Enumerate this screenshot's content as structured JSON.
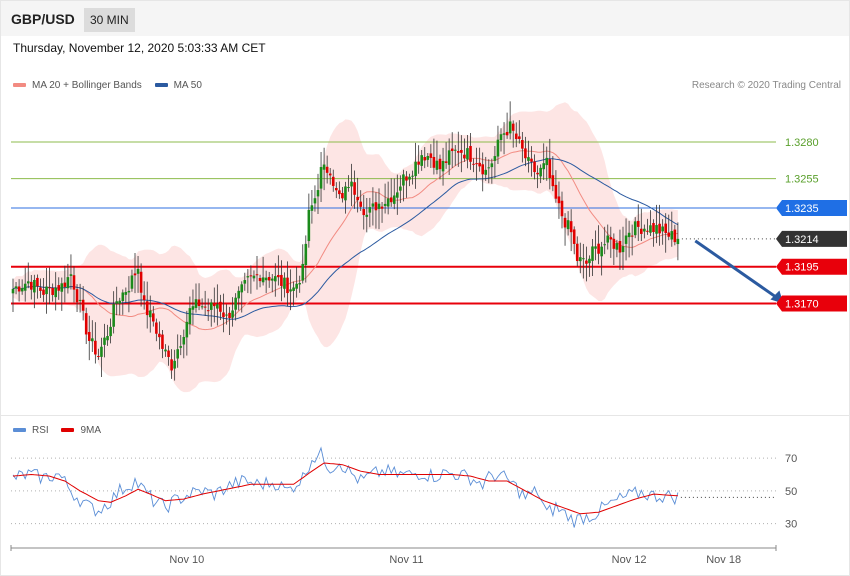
{
  "header": {
    "symbol": "GBP/USD",
    "timeframe": "30 MIN"
  },
  "timestamp": "Thursday, November 12, 2020 5:03:33 AM CET",
  "credit": "Research © 2020 Trading Central",
  "legend_main": [
    {
      "label": "MA 20 + Bollinger Bands",
      "color": "#f28b82"
    },
    {
      "label": "MA 50",
      "color": "#2b5aa0"
    }
  ],
  "legend_rsi": [
    {
      "label": "RSI",
      "color": "#5b8ed6"
    },
    {
      "label": "9MA",
      "color": "#e00000"
    }
  ],
  "chart_data": {
    "type": "candlestick",
    "ylim": [
      1.3094,
      1.3312
    ],
    "x_ticks": [
      {
        "label": "Nov 10",
        "index": 57
      },
      {
        "label": "Nov 11",
        "index": 129
      },
      {
        "label": "Nov 12",
        "index": 202
      },
      {
        "label": "Nov 18",
        "index": 233
      }
    ],
    "levels": [
      {
        "value": 1.328,
        "label": "1.3280",
        "type": "resistance",
        "color": "#8dbb4c"
      },
      {
        "value": 1.3255,
        "label": "1.3255",
        "type": "resistance",
        "color": "#8dbb4c"
      },
      {
        "value": 1.3235,
        "label": "1.3235",
        "type": "pivot",
        "color": "#2e6fe0"
      },
      {
        "value": 1.3214,
        "label": "1.3214",
        "type": "last",
        "color": "#333333"
      },
      {
        "value": 1.3195,
        "label": "1.3195",
        "type": "support",
        "color": "#e8000b"
      },
      {
        "value": 1.317,
        "label": "1.3170",
        "type": "support",
        "color": "#e8000b"
      }
    ],
    "forecast_arrow": {
      "from": [
        226,
        1.3214
      ],
      "to": [
        248,
        1.317
      ]
    },
    "price_path": [
      [
        0,
        1.318
      ],
      [
        5,
        1.3185
      ],
      [
        10,
        1.3178
      ],
      [
        16,
        1.3182
      ],
      [
        19,
        1.319
      ],
      [
        22,
        1.3168
      ],
      [
        25,
        1.3145
      ],
      [
        28,
        1.3135
      ],
      [
        31,
        1.315
      ],
      [
        34,
        1.3172
      ],
      [
        38,
        1.3182
      ],
      [
        41,
        1.3195
      ],
      [
        43,
        1.3168
      ],
      [
        46,
        1.3158
      ],
      [
        49,
        1.314
      ],
      [
        52,
        1.3128
      ],
      [
        55,
        1.3145
      ],
      [
        58,
        1.3165
      ],
      [
        61,
        1.317
      ],
      [
        64,
        1.3166
      ],
      [
        67,
        1.317
      ],
      [
        70,
        1.316
      ],
      [
        74,
        1.3175
      ],
      [
        77,
        1.3185
      ],
      [
        81,
        1.319
      ],
      [
        85,
        1.3188
      ],
      [
        89,
        1.3183
      ],
      [
        92,
        1.318
      ],
      [
        95,
        1.3192
      ],
      [
        97,
        1.323
      ],
      [
        99,
        1.3242
      ],
      [
        101,
        1.326
      ],
      [
        104,
        1.3262
      ],
      [
        106,
        1.3245
      ],
      [
        108,
        1.324
      ],
      [
        110,
        1.3252
      ],
      [
        113,
        1.3245
      ],
      [
        116,
        1.323
      ],
      [
        119,
        1.3237
      ],
      [
        122,
        1.324
      ],
      [
        125,
        1.3245
      ],
      [
        128,
        1.3255
      ],
      [
        131,
        1.3262
      ],
      [
        134,
        1.3272
      ],
      [
        137,
        1.327
      ],
      [
        140,
        1.3262
      ],
      [
        143,
        1.327
      ],
      [
        146,
        1.3275
      ],
      [
        149,
        1.3272
      ],
      [
        152,
        1.3268
      ],
      [
        155,
        1.326
      ],
      [
        158,
        1.327
      ],
      [
        160,
        1.3285
      ],
      [
        163,
        1.329
      ],
      [
        166,
        1.3278
      ],
      [
        169,
        1.3265
      ],
      [
        172,
        1.3258
      ],
      [
        175,
        1.3265
      ],
      [
        177,
        1.3245
      ],
      [
        180,
        1.323
      ],
      [
        183,
        1.3218
      ],
      [
        185,
        1.32
      ],
      [
        188,
        1.3197
      ],
      [
        190,
        1.3205
      ],
      [
        193,
        1.321
      ],
      [
        196,
        1.3212
      ],
      [
        199,
        1.3208
      ],
      [
        202,
        1.322
      ],
      [
        205,
        1.3222
      ],
      [
        208,
        1.3222
      ],
      [
        211,
        1.3221
      ],
      [
        214,
        1.3217
      ],
      [
        216,
        1.3216
      ],
      [
        218,
        1.3214
      ]
    ],
    "rsi": {
      "ylim": [
        20,
        78
      ],
      "ticks": [
        70,
        50,
        30
      ],
      "rsi_path": [
        [
          0,
          58
        ],
        [
          5,
          60
        ],
        [
          10,
          58
        ],
        [
          15,
          60
        ],
        [
          20,
          48
        ],
        [
          25,
          40
        ],
        [
          28,
          38
        ],
        [
          32,
          44
        ],
        [
          35,
          50
        ],
        [
          40,
          56
        ],
        [
          43,
          50
        ],
        [
          46,
          44
        ],
        [
          50,
          40
        ],
        [
          53,
          44
        ],
        [
          58,
          48
        ],
        [
          62,
          50
        ],
        [
          66,
          48
        ],
        [
          72,
          54
        ],
        [
          76,
          56
        ],
        [
          80,
          54
        ],
        [
          86,
          55
        ],
        [
          90,
          50
        ],
        [
          95,
          58
        ],
        [
          98,
          70
        ],
        [
          101,
          72
        ],
        [
          104,
          64
        ],
        [
          107,
          68
        ],
        [
          110,
          62
        ],
        [
          114,
          56
        ],
        [
          118,
          60
        ],
        [
          122,
          62
        ],
        [
          126,
          60
        ],
        [
          130,
          60
        ],
        [
          134,
          61
        ],
        [
          138,
          59
        ],
        [
          142,
          61
        ],
        [
          146,
          60
        ],
        [
          150,
          58
        ],
        [
          154,
          54
        ],
        [
          157,
          60
        ],
        [
          161,
          58
        ],
        [
          164,
          54
        ],
        [
          168,
          46
        ],
        [
          172,
          50
        ],
        [
          175,
          36
        ],
        [
          178,
          40
        ],
        [
          181,
          36
        ],
        [
          184,
          32
        ],
        [
          187,
          34
        ],
        [
          190,
          35
        ],
        [
          194,
          40
        ],
        [
          198,
          44
        ],
        [
          202,
          47
        ],
        [
          206,
          49
        ],
        [
          210,
          47
        ],
        [
          214,
          47
        ],
        [
          218,
          46
        ]
      ],
      "ma_path": [
        [
          0,
          59
        ],
        [
          6,
          60
        ],
        [
          12,
          59
        ],
        [
          17,
          56
        ],
        [
          22,
          50
        ],
        [
          28,
          44
        ],
        [
          32,
          43
        ],
        [
          37,
          47
        ],
        [
          41,
          51
        ],
        [
          45,
          48
        ],
        [
          50,
          44
        ],
        [
          56,
          45
        ],
        [
          62,
          48
        ],
        [
          70,
          51
        ],
        [
          78,
          54
        ],
        [
          86,
          54
        ],
        [
          92,
          54
        ],
        [
          98,
          62
        ],
        [
          102,
          67
        ],
        [
          108,
          66
        ],
        [
          114,
          62
        ],
        [
          120,
          60
        ],
        [
          128,
          60
        ],
        [
          136,
          60
        ],
        [
          144,
          60
        ],
        [
          150,
          59
        ],
        [
          156,
          56
        ],
        [
          162,
          56
        ],
        [
          168,
          50
        ],
        [
          174,
          44
        ],
        [
          180,
          40
        ],
        [
          186,
          36
        ],
        [
          192,
          37
        ],
        [
          198,
          41
        ],
        [
          204,
          45
        ],
        [
          210,
          48
        ],
        [
          218,
          47
        ]
      ]
    }
  }
}
